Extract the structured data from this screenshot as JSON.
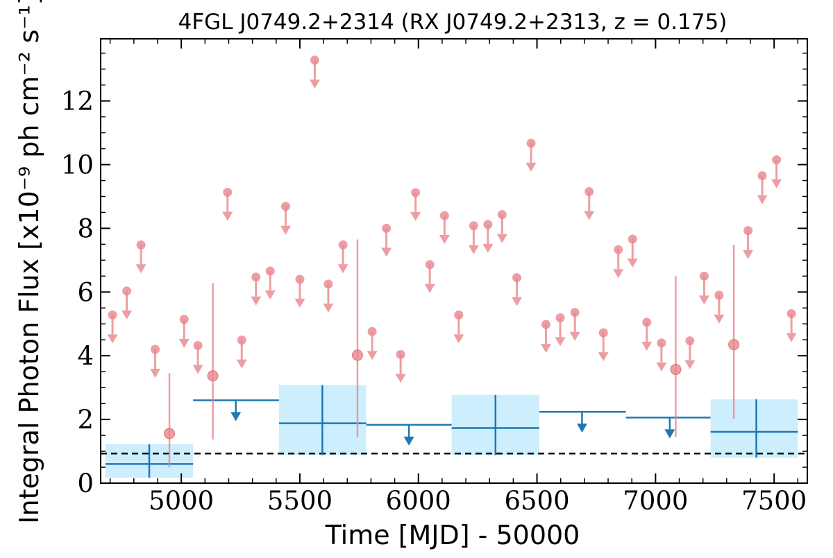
{
  "chart_data": {
    "type": "scatter",
    "title": "4FGL J0749.2+2314 (RX J0749.2+2313, z = 0.175)",
    "xlabel": "Time [MJD] - 50000",
    "ylabel": "Integral Photon Flux [x10⁻⁹ ph cm⁻² s⁻¹]",
    "xlim": [
      4660,
      7640
    ],
    "ylim": [
      0,
      13.95
    ],
    "xticks": [
      "5000",
      "5500",
      "6000",
      "6500",
      "7000",
      "7500"
    ],
    "yticks": [
      "0",
      "2",
      "4",
      "6",
      "8",
      "10",
      "12"
    ],
    "xtick_values": [
      5000,
      5500,
      6000,
      6500,
      7000,
      7500
    ],
    "ytick_values": [
      0,
      2,
      4,
      6,
      8,
      10,
      12
    ],
    "grid": false,
    "colors": {
      "short_bins": "#e8868c",
      "long_bins": "#1f77b4",
      "long_bin_band": "#cdeefc",
      "reference_line": "#000000"
    },
    "reference_line": {
      "y": 0.93,
      "style": "dashed"
    },
    "short_bins": {
      "upper_limits": [
        {
          "x": 4710,
          "y": 5.28
        },
        {
          "x": 4770,
          "y": 6.03
        },
        {
          "x": 4830,
          "y": 7.48
        },
        {
          "x": 4890,
          "y": 4.2
        },
        {
          "x": 5012,
          "y": 5.14
        },
        {
          "x": 5070,
          "y": 4.32
        },
        {
          "x": 5195,
          "y": 9.13
        },
        {
          "x": 5255,
          "y": 4.49
        },
        {
          "x": 5315,
          "y": 6.47
        },
        {
          "x": 5375,
          "y": 6.66
        },
        {
          "x": 5440,
          "y": 8.69
        },
        {
          "x": 5500,
          "y": 6.4
        },
        {
          "x": 5563,
          "y": 13.28
        },
        {
          "x": 5620,
          "y": 6.25
        },
        {
          "x": 5682,
          "y": 7.48
        },
        {
          "x": 5805,
          "y": 4.76
        },
        {
          "x": 5865,
          "y": 8.0
        },
        {
          "x": 5925,
          "y": 4.04
        },
        {
          "x": 5988,
          "y": 9.12
        },
        {
          "x": 6048,
          "y": 6.86
        },
        {
          "x": 6110,
          "y": 8.4
        },
        {
          "x": 6170,
          "y": 5.28
        },
        {
          "x": 6233,
          "y": 8.08
        },
        {
          "x": 6293,
          "y": 8.12
        },
        {
          "x": 6353,
          "y": 8.43
        },
        {
          "x": 6415,
          "y": 6.45
        },
        {
          "x": 6475,
          "y": 10.67
        },
        {
          "x": 6538,
          "y": 4.98
        },
        {
          "x": 6598,
          "y": 5.19
        },
        {
          "x": 6660,
          "y": 5.36
        },
        {
          "x": 6720,
          "y": 9.15
        },
        {
          "x": 6780,
          "y": 4.72
        },
        {
          "x": 6843,
          "y": 7.33
        },
        {
          "x": 6903,
          "y": 7.66
        },
        {
          "x": 6963,
          "y": 5.05
        },
        {
          "x": 7025,
          "y": 4.4
        },
        {
          "x": 7145,
          "y": 4.47
        },
        {
          "x": 7205,
          "y": 6.5
        },
        {
          "x": 7268,
          "y": 5.9
        },
        {
          "x": 7390,
          "y": 7.93
        },
        {
          "x": 7450,
          "y": 9.65
        },
        {
          "x": 7510,
          "y": 10.15
        },
        {
          "x": 7573,
          "y": 5.32
        }
      ],
      "detections": [
        {
          "x": 4950,
          "y": 1.56,
          "ylow": 0.5,
          "yhigh": 3.45
        },
        {
          "x": 5133,
          "y": 3.37,
          "ylow": 1.37,
          "yhigh": 6.28
        },
        {
          "x": 5743,
          "y": 4.02,
          "ylow": 1.45,
          "yhigh": 7.65
        },
        {
          "x": 7085,
          "y": 3.57,
          "ylow": 1.45,
          "yhigh": 6.5
        },
        {
          "x": 7330,
          "y": 4.35,
          "ylow": 2.02,
          "yhigh": 7.48
        }
      ]
    },
    "long_bins": {
      "detections": [
        {
          "x": 4865,
          "xlow": 4680,
          "xhigh": 5050,
          "y": 0.6,
          "ylow": 0.17,
          "yhigh": 1.22
        },
        {
          "x": 5595,
          "xlow": 5412,
          "xhigh": 5780,
          "y": 1.88,
          "ylow": 0.88,
          "yhigh": 3.08
        },
        {
          "x": 6325,
          "xlow": 6140,
          "xhigh": 6510,
          "y": 1.73,
          "ylow": 0.88,
          "yhigh": 2.77
        },
        {
          "x": 7425,
          "xlow": 7232,
          "xhigh": 7600,
          "y": 1.61,
          "ylow": 0.8,
          "yhigh": 2.63
        }
      ],
      "upper_limits": [
        {
          "x": 5230,
          "xlow": 5050,
          "xhigh": 5412,
          "y": 2.6
        },
        {
          "x": 5960,
          "xlow": 5780,
          "xhigh": 6140,
          "y": 1.83
        },
        {
          "x": 6690,
          "xlow": 6510,
          "xhigh": 6875,
          "y": 2.24
        },
        {
          "x": 7060,
          "xlow": 6875,
          "xhigh": 7232,
          "y": 2.06
        }
      ]
    }
  }
}
